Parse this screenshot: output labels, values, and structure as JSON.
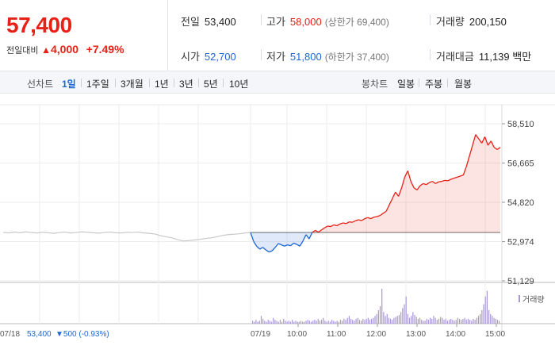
{
  "header": {
    "price": "57,400",
    "change_label": "전일대비",
    "change_amount": "4,000",
    "change_pct": "+7.49%",
    "prev_close": {
      "label": "전일",
      "value": "53,400"
    },
    "high": {
      "label": "고가",
      "value": "58,000",
      "limit_label": "(상한가 69,400)"
    },
    "volume": {
      "label": "거래량",
      "value": "200,150"
    },
    "open": {
      "label": "시가",
      "value": "52,700"
    },
    "low": {
      "label": "저가",
      "value": "51,800",
      "limit_label": "(하한가 37,400)"
    },
    "amount": {
      "label": "거래대금",
      "value": "11,139 백만"
    }
  },
  "toolbar": {
    "line_label": "선차트",
    "line_periods": [
      "1일",
      "1주일",
      "3개월",
      "1년",
      "3년",
      "5년",
      "10년"
    ],
    "active_period": "1일",
    "candle_label": "봉차트",
    "candle_periods": [
      "일봉",
      "주봉",
      "월봉"
    ]
  },
  "colors": {
    "up": "#e62117",
    "down": "#1c65d4",
    "prev": "#c8c8c8",
    "volume": "#a896d6"
  },
  "chart_data": {
    "type": "line",
    "y_ticks": [
      "58,510",
      "56,665",
      "54,820",
      "52,974",
      "51,129"
    ],
    "ylim": [
      51129,
      58510
    ],
    "baseline": 53400,
    "prev_day": {
      "label": "07/18",
      "close": "53,400",
      "change": "▼500 (-0.93%)",
      "series": [
        53410,
        53380,
        53420,
        53390,
        53430,
        53400,
        53380,
        53410,
        53390,
        53360,
        53400,
        53420,
        53380,
        53400,
        53430,
        53410,
        53390,
        53370,
        53400,
        53420,
        53390,
        53380,
        53410,
        53400,
        53420,
        53380,
        53360,
        53330,
        53250,
        53200,
        53150,
        53070,
        53000,
        53020,
        53050,
        53080,
        53120,
        53150,
        53200,
        53260,
        53300,
        53320,
        53340,
        53380,
        53400
      ]
    },
    "today": {
      "label": "07/19",
      "x_labels": [
        "10:00",
        "11:00",
        "12:00",
        "13:00",
        "14:00",
        "15:00"
      ],
      "series": [
        53400,
        52980,
        52750,
        52620,
        52700,
        52580,
        52480,
        52540,
        52700,
        52880,
        52820,
        52760,
        52820,
        52780,
        52900,
        52840,
        52760,
        53000,
        53300,
        53100,
        53400,
        53500,
        53420,
        53520,
        53620,
        53700,
        53680,
        53760,
        53720,
        53800,
        53850,
        53820,
        53900,
        53880,
        53950,
        54000,
        53960,
        54050,
        54100,
        54050,
        54120,
        54150,
        54200,
        54300,
        54400,
        54700,
        55000,
        55300,
        55100,
        55500,
        56000,
        56300,
        55800,
        55500,
        55400,
        55600,
        55700,
        55650,
        55750,
        55800,
        55700,
        55780,
        55800,
        55850,
        55830,
        55900,
        55950,
        56000,
        56050,
        56100,
        56500,
        57000,
        57500,
        58000,
        57800,
        57600,
        57900,
        57500,
        57700,
        57400,
        57300,
        57400
      ]
    },
    "volume": {
      "label": "거래량",
      "bars": [
        3,
        2,
        4,
        2,
        3,
        8,
        5,
        3,
        2,
        4,
        3,
        2,
        6,
        4,
        3,
        2,
        4,
        2,
        5,
        3,
        2,
        3,
        2,
        4,
        2,
        3,
        2,
        2,
        3,
        2,
        2,
        3,
        4,
        3,
        2,
        3,
        4,
        3,
        5,
        3,
        4,
        6,
        3,
        2,
        3,
        2,
        4,
        3,
        2,
        3,
        2,
        4,
        3,
        5,
        4,
        6,
        8,
        5,
        4,
        3,
        5,
        6,
        4,
        3,
        5,
        4,
        5,
        6,
        4,
        5,
        6,
        8,
        10,
        14,
        18,
        36,
        12,
        8,
        10,
        6,
        5,
        4,
        6,
        7,
        8,
        9,
        12,
        16,
        20,
        28,
        10,
        6,
        8,
        12,
        9,
        7,
        5,
        6,
        4,
        3,
        3,
        5,
        4,
        6,
        5,
        8,
        6,
        4,
        5,
        7,
        6,
        4,
        5,
        3,
        4,
        5,
        4,
        3,
        4,
        6,
        5,
        4,
        5,
        6,
        4,
        5,
        4,
        3,
        5,
        4,
        6,
        8,
        10,
        14,
        20,
        28,
        34,
        14,
        10,
        8,
        6,
        5,
        4,
        3
      ],
      "max": 36
    }
  }
}
